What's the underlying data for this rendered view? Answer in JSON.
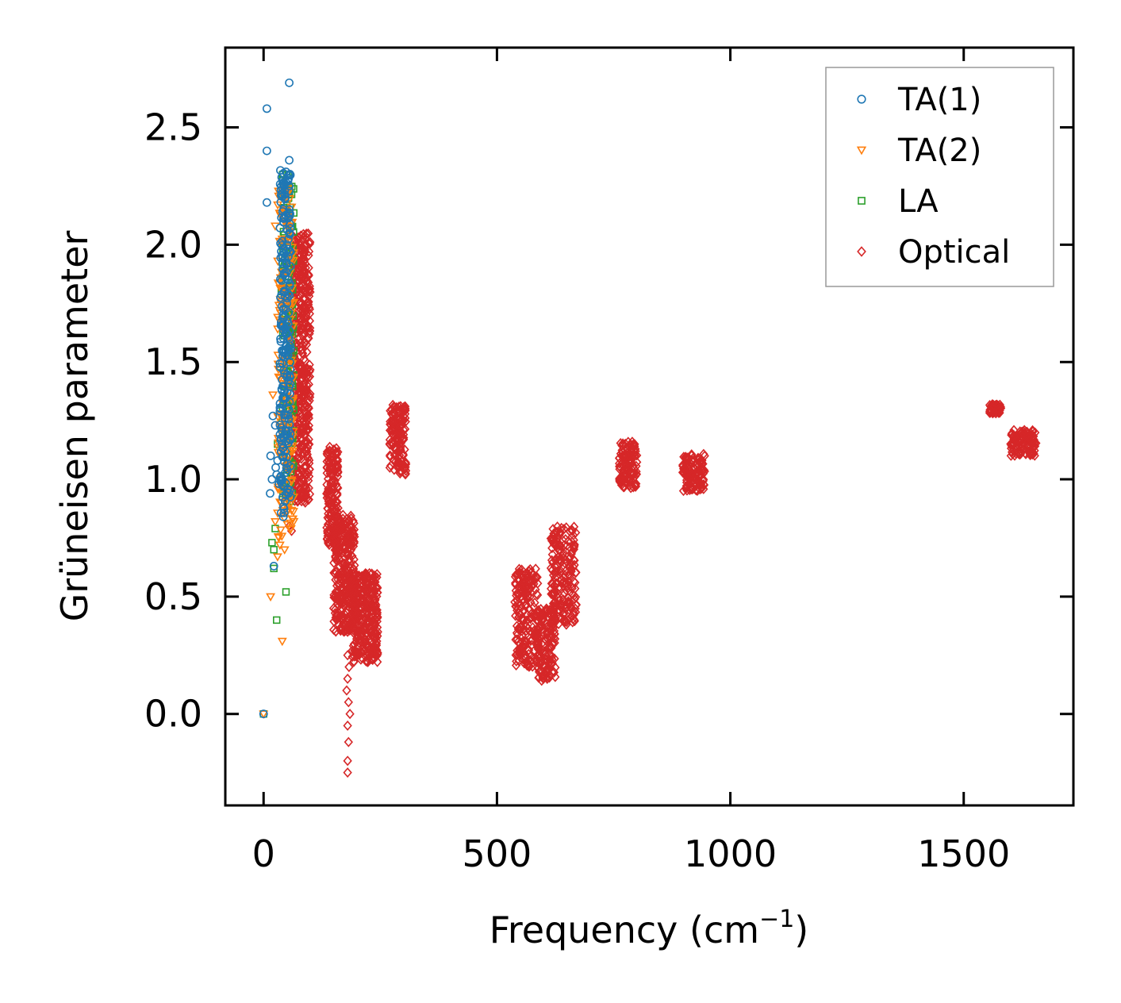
{
  "chart_data": {
    "type": "scatter",
    "title": "",
    "xlabel": "Frequency (cm",
    "xlabel_sup": "−1",
    "xlabel_close": ")",
    "ylabel": "Grüneisen parameter",
    "xlim": [
      -82,
      1735
    ],
    "ylim": [
      -0.39,
      2.84
    ],
    "xticks": [
      0,
      500,
      1000,
      1500
    ],
    "xtick_labels": [
      "0",
      "500",
      "1000",
      "1500"
    ],
    "yticks": [
      0.0,
      0.5,
      1.0,
      1.5,
      2.0,
      2.5
    ],
    "ytick_labels": [
      "0.0",
      "0.5",
      "1.0",
      "1.5",
      "2.0",
      "2.5"
    ],
    "grid": false,
    "legend_position": "top-right",
    "series": [
      {
        "name": "TA(1)",
        "marker": "circle",
        "color": "#1f77b4",
        "points": [
          [
            0,
            0.0
          ],
          [
            7,
            2.58
          ],
          [
            7,
            2.4
          ],
          [
            7,
            2.18
          ],
          [
            55,
            2.69
          ],
          [
            55,
            2.36
          ],
          [
            20,
            1.27
          ],
          [
            25,
            1.23
          ],
          [
            15,
            1.1
          ],
          [
            30,
            1.08
          ],
          [
            18,
            1.0
          ],
          [
            28,
            1.02
          ],
          [
            14,
            0.94
          ],
          [
            22,
            0.63
          ],
          [
            42,
            0.84
          ],
          [
            35,
            1.29
          ],
          [
            38,
            1.22
          ],
          [
            45,
            1.35
          ],
          [
            48,
            1.55
          ],
          [
            50,
            1.75
          ],
          [
            52,
            1.85
          ],
          [
            53,
            1.95
          ],
          [
            55,
            2.05
          ],
          [
            55,
            2.15
          ],
          [
            55,
            2.25
          ],
          [
            50,
            2.0
          ],
          [
            45,
            1.45
          ],
          [
            40,
            1.15
          ],
          [
            33,
            0.98
          ],
          [
            26,
            1.05
          ]
        ],
        "clusters": [
          [
            35,
            58,
            0.85,
            2.32,
            220
          ]
        ]
      },
      {
        "name": "TA(2)",
        "marker": "triangle-down",
        "color": "#ff7f0e",
        "points": [
          [
            0,
            0.0
          ],
          [
            25,
            2.08
          ],
          [
            20,
            1.36
          ],
          [
            15,
            0.5
          ],
          [
            40,
            0.31
          ],
          [
            30,
            0.67
          ],
          [
            35,
            0.72
          ],
          [
            25,
            0.82
          ],
          [
            45,
            0.7
          ],
          [
            40,
            2.22
          ],
          [
            50,
            2.15
          ]
        ],
        "clusters": [
          [
            30,
            65,
            0.75,
            2.25,
            200
          ]
        ]
      },
      {
        "name": "LA",
        "marker": "square",
        "color": "#2ca02c",
        "points": [
          [
            0,
            0.0
          ],
          [
            28,
            0.4
          ],
          [
            48,
            0.52
          ],
          [
            22,
            0.62
          ],
          [
            18,
            0.73
          ],
          [
            25,
            0.79
          ],
          [
            38,
            1.8
          ],
          [
            35,
            1.48
          ],
          [
            30,
            1.15
          ],
          [
            22,
            0.7
          ]
        ],
        "clusters": [
          [
            40,
            65,
            0.9,
            2.3,
            150
          ]
        ]
      },
      {
        "name": "Optical",
        "marker": "diamond",
        "color": "#d62728",
        "points": [
          [
            150,
            0.45
          ],
          [
            180,
            0.6
          ],
          [
            185,
            0.45
          ],
          [
            180,
            0.35
          ],
          [
            180,
            0.25
          ],
          [
            180,
            0.15
          ],
          [
            182,
            0.05
          ],
          [
            180,
            -0.05
          ],
          [
            182,
            -0.12
          ],
          [
            180,
            -0.2
          ],
          [
            180,
            -0.25
          ],
          [
            185,
            0.0
          ],
          [
            178,
            0.1
          ],
          [
            183,
            0.2
          ],
          [
            60,
            0.78
          ],
          [
            55,
            0.8
          ]
        ],
        "clusters": [
          [
            60,
            100,
            0.9,
            2.05,
            500
          ],
          [
            135,
            160,
            0.72,
            1.14,
            160
          ],
          [
            150,
            195,
            0.35,
            0.85,
            300
          ],
          [
            190,
            245,
            0.22,
            0.6,
            320
          ],
          [
            270,
            305,
            1.02,
            1.32,
            140
          ],
          [
            538,
            590,
            0.2,
            0.62,
            200
          ],
          [
            585,
            625,
            0.14,
            0.45,
            140
          ],
          [
            615,
            670,
            0.38,
            0.8,
            200
          ],
          [
            762,
            800,
            0.96,
            1.16,
            120
          ],
          [
            898,
            945,
            0.95,
            1.11,
            120
          ],
          [
            1555,
            1580,
            1.28,
            1.32,
            60
          ],
          [
            1600,
            1655,
            1.1,
            1.21,
            110
          ]
        ]
      }
    ]
  }
}
